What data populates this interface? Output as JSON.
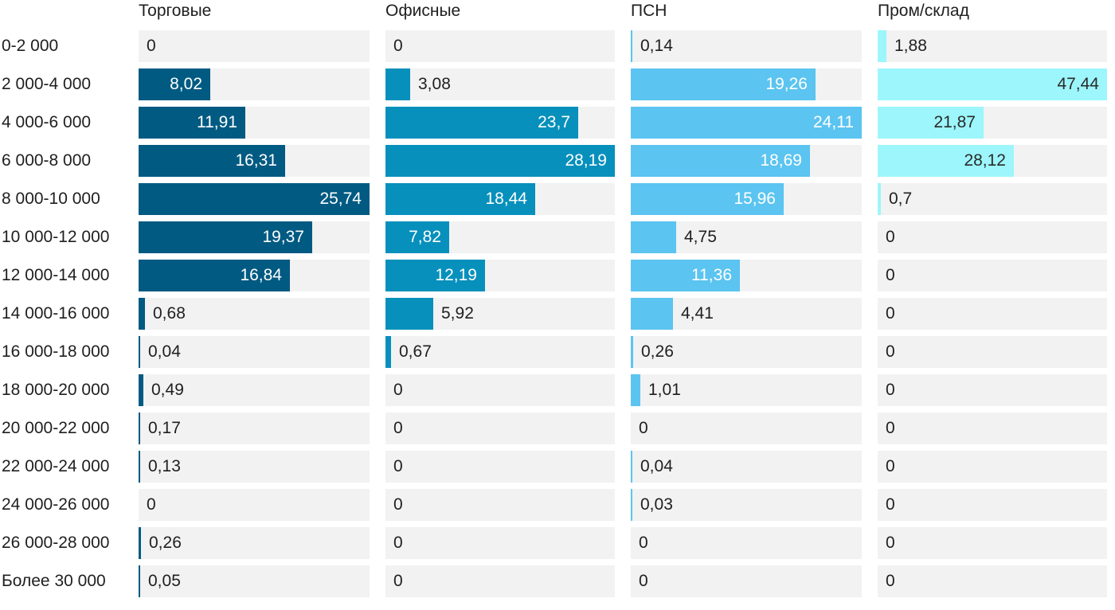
{
  "chart_data": {
    "type": "bar",
    "orientation": "horizontal",
    "categories": [
      "0-2 000",
      "2 000-4 000",
      "4 000-6 000",
      "6 000-8 000",
      "8 000-10 000",
      "10 000-12 000",
      "12 000-14 000",
      "14 000-16 000",
      "16 000-18 000",
      "18 000-20 000",
      "20 000-22 000",
      "22 000-24 000",
      "24 000-26 000",
      "26 000-28 000",
      "Более 30 000"
    ],
    "series": [
      {
        "name": "Торговые",
        "color": "#005a82",
        "max": 25.74,
        "values": [
          0,
          8.02,
          11.91,
          16.31,
          25.74,
          19.37,
          16.84,
          0.68,
          0.04,
          0.49,
          0.17,
          0.13,
          0,
          0.26,
          0.05
        ],
        "labels": [
          "0",
          "8,02",
          "11,91",
          "16,31",
          "25,74",
          "19,37",
          "16,84",
          "0,68",
          "0,04",
          "0,49",
          "0,17",
          "0,13",
          "0",
          "0,26",
          "0,05"
        ]
      },
      {
        "name": "Офисные",
        "color": "#0790bc",
        "max": 28.19,
        "values": [
          0,
          3.08,
          23.7,
          28.19,
          18.44,
          7.82,
          12.19,
          5.92,
          0.67,
          0,
          0,
          0,
          0,
          0,
          0
        ],
        "labels": [
          "0",
          "3,08",
          "23,7",
          "28,19",
          "18,44",
          "7,82",
          "12,19",
          "5,92",
          "0,67",
          "0",
          "0",
          "0",
          "0",
          "0",
          "0"
        ]
      },
      {
        "name": "ПСН",
        "color": "#5bc4f0",
        "max": 24.11,
        "values": [
          0.14,
          19.26,
          24.11,
          18.69,
          15.96,
          4.75,
          11.36,
          4.41,
          0.26,
          1.01,
          0,
          0.04,
          0.03,
          0,
          0
        ],
        "labels": [
          "0,14",
          "19,26",
          "24,11",
          "18,69",
          "15,96",
          "4,75",
          "11,36",
          "4,41",
          "0,26",
          "1,01",
          "0",
          "0,04",
          "0,03",
          "0",
          "0"
        ]
      },
      {
        "name": "Пром/склад",
        "color": "#9cf6fb",
        "max": 47.44,
        "values": [
          1.88,
          47.44,
          21.87,
          28.12,
          0.7,
          0,
          0,
          0,
          0,
          0,
          0,
          0,
          0,
          0,
          0
        ],
        "labels": [
          "1,88",
          "47,44",
          "21,87",
          "28,12",
          "0,7",
          "0",
          "0",
          "0",
          "0",
          "0",
          "0",
          "0",
          "0",
          "0",
          "0"
        ]
      }
    ],
    "title": "",
    "xlabel": "",
    "ylabel": "",
    "grid": false,
    "legend": "none"
  }
}
